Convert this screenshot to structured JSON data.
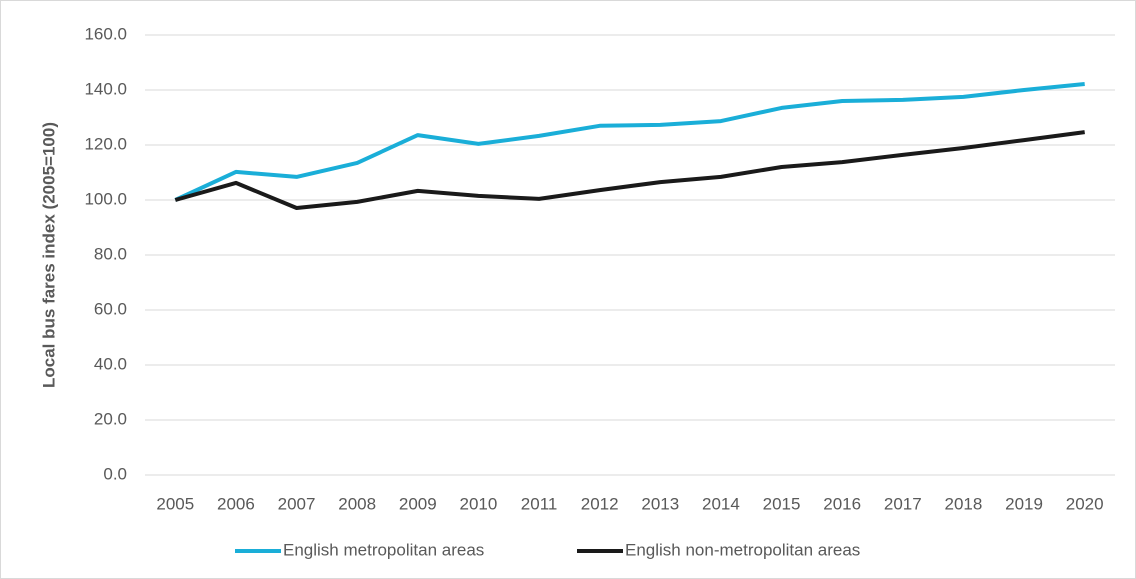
{
  "chart_data": {
    "type": "line",
    "y_label": "Local bus fares index (2005=100)",
    "categories": [
      "2005",
      "2006",
      "2007",
      "2008",
      "2009",
      "2010",
      "2011",
      "2012",
      "2013",
      "2014",
      "2015",
      "2016",
      "2017",
      "2018",
      "2019",
      "2020"
    ],
    "series": [
      {
        "name": "English metropolitan areas",
        "color": "#1aaed8",
        "values": [
          100,
          110.2,
          108.4,
          113.5,
          123.6,
          120.4,
          123.3,
          127,
          127.3,
          128.7,
          133.5,
          136,
          136.4,
          137.5,
          140,
          142.2
        ]
      },
      {
        "name": "English non-metropolitan areas",
        "color": "#1a1a1a",
        "values": [
          100,
          106.2,
          97.1,
          99.3,
          103.3,
          101.5,
          100.4,
          103.6,
          106.5,
          108.4,
          112,
          113.8,
          116.4,
          118.9,
          121.8,
          124.7
        ]
      }
    ],
    "ylim": [
      0,
      160
    ],
    "yticks": [
      {
        "value": 0,
        "label": "0.0"
      },
      {
        "value": 20,
        "label": "20.0"
      },
      {
        "value": 40,
        "label": "40.0"
      },
      {
        "value": 60,
        "label": "60.0"
      },
      {
        "value": 80,
        "label": "80.0"
      },
      {
        "value": 100,
        "label": "100.0"
      },
      {
        "value": 120,
        "label": "120.0"
      },
      {
        "value": 140,
        "label": "140.0"
      },
      {
        "value": 160,
        "label": "160.0"
      }
    ],
    "grid": true
  }
}
